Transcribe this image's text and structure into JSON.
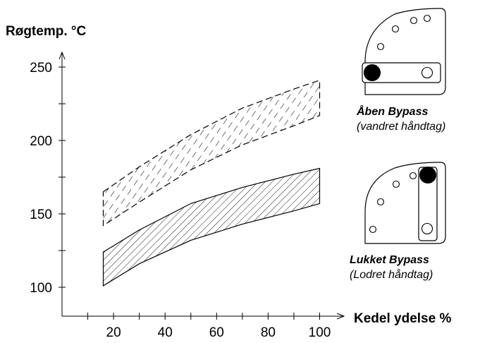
{
  "chart_data": {
    "type": "area",
    "ylabel": "Røgtemp. °C",
    "xlabel": "Kedel ydelse %",
    "x_ticks": [
      20,
      40,
      60,
      80,
      100
    ],
    "y_ticks": [
      100,
      150,
      200,
      250
    ],
    "xlim": [
      0,
      100
    ],
    "ylim": [
      85,
      260
    ],
    "series": [
      {
        "name": "Åben Bypass",
        "pattern": "dashed-hatch",
        "x": [
          16,
          30,
          50,
          70,
          90,
          100
        ],
        "lower": [
          142,
          158,
          180,
          197,
          210,
          217
        ],
        "upper": [
          165,
          182,
          204,
          222,
          235,
          241
        ]
      },
      {
        "name": "Lukket Bypass",
        "pattern": "solid-hatch",
        "x": [
          16,
          30,
          50,
          70,
          90,
          100
        ],
        "lower": [
          101,
          116,
          132,
          143,
          152,
          157
        ],
        "upper": [
          124,
          139,
          157,
          168,
          177,
          181
        ]
      }
    ]
  },
  "legend": {
    "open": {
      "title": "Åben Bypass",
      "subtitle": "(vandret håndtag)"
    },
    "closed": {
      "title": "Lukket Bypass",
      "subtitle": "(Lodret håndtag)"
    }
  }
}
